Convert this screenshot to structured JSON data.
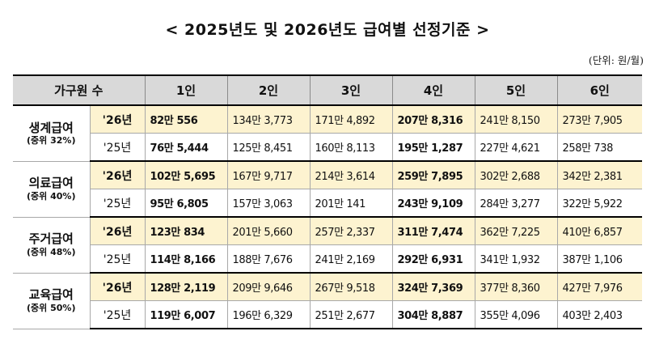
{
  "title": "< 2025년도 및 2026년도 급여별 선정기준 >",
  "unit": "(단위: 원/월)",
  "headers": [
    "가구원 수",
    "1인",
    "2인",
    "3인",
    "4인",
    "5인",
    "6인"
  ],
  "rows": [
    {
      "category": "생계급여",
      "sub": "(중위 32%)",
      "y26": "'26년",
      "y25": "'25년",
      "v26": [
        "82만 556",
        "134만 3,773",
        "171만 4,892",
        "207만 8,316",
        "241만 8,150",
        "273만 7,905"
      ],
      "v25": [
        "76만 5,444",
        "125만 8,451",
        "160만 8,113",
        "195만 1,287",
        "227만 4,621",
        "258만 738"
      ]
    },
    {
      "category": "의료급여",
      "sub": "(중위 40%)",
      "y26": "'26년",
      "y25": "'25년",
      "v26": [
        "102만 5,695",
        "167만 9,717",
        "214만 3,614",
        "259만 7,895",
        "302만 2,688",
        "342만 2,381"
      ],
      "v25": [
        "95만 6,805",
        "157만 3,063",
        "201만 141",
        "243만 9,109",
        "284만 3,277",
        "322만 5,922"
      ]
    },
    {
      "category": "주거급여",
      "sub": "(중위 48%)",
      "y26": "'26년",
      "y25": "'25년",
      "v26": [
        "123만 834",
        "201만 5,660",
        "257만 2,337",
        "311만 7,474",
        "362만 7,225",
        "410만 6,857"
      ],
      "v25": [
        "114만 8,166",
        "188만 7,676",
        "241만 2,169",
        "292만 6,931",
        "341만 1,932",
        "387만 1,106"
      ]
    },
    {
      "category": "교육급여",
      "sub": "(중위 50%)",
      "y26": "'26년",
      "y25": "'25년",
      "v26": [
        "128만 2,119",
        "209만 9,646",
        "267만 9,518",
        "324만 7,369",
        "377만 8,360",
        "427만 7,976"
      ],
      "v25": [
        "119만 6,007",
        "196만 6,329",
        "251만 2,677",
        "304만 8,887",
        "355만 4,096",
        "403만 2,403"
      ]
    }
  ]
}
